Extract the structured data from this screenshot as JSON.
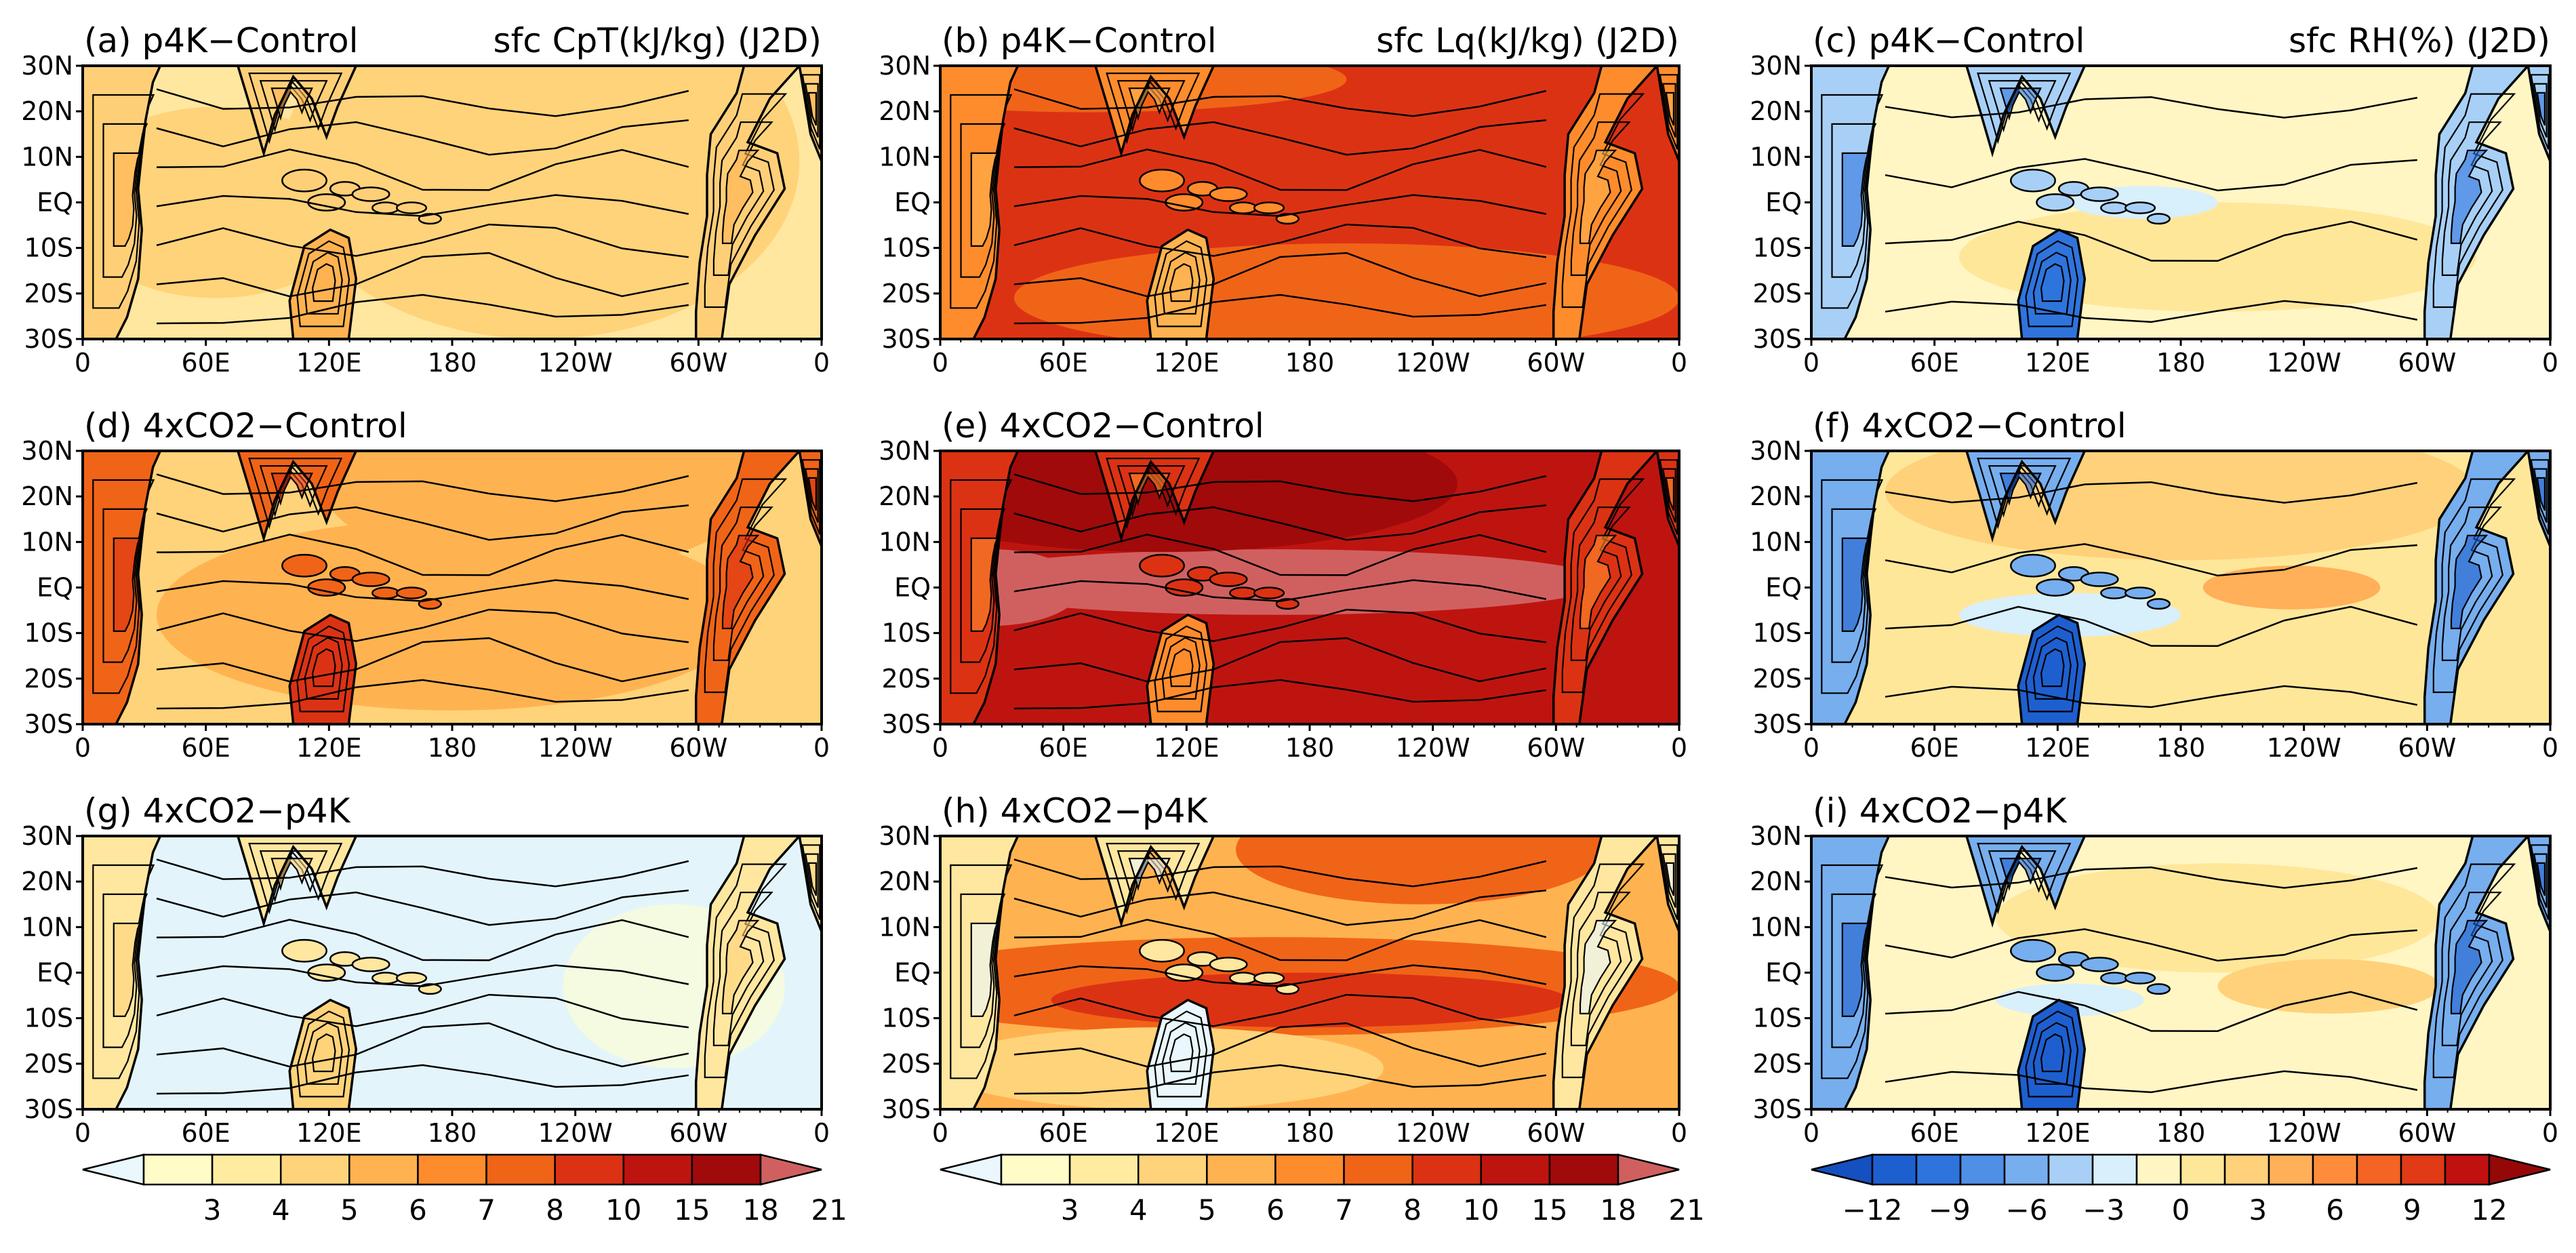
{
  "chart_data": {
    "type": "heatmap",
    "lat_ticks": [
      "30N",
      "20N",
      "10N",
      "EQ",
      "10S",
      "20S",
      "30S"
    ],
    "lon_ticks": [
      "0",
      "60E",
      "120E",
      "180",
      "120W",
      "60W",
      "0"
    ],
    "panels": [
      {
        "id": "a",
        "left": "(a) p4K−Control",
        "right": "sfc CpT(kJ/kg) (J2D)",
        "var": "cpt",
        "scen": "p4k"
      },
      {
        "id": "b",
        "left": "(b) p4K−Control",
        "right": "sfc Lq(kJ/kg) (J2D)",
        "var": "lq",
        "scen": "p4k"
      },
      {
        "id": "c",
        "left": "(c) p4K−Control",
        "right": "sfc RH(%) (J2D)",
        "var": "rh",
        "scen": "p4k"
      },
      {
        "id": "d",
        "left": "(d) 4xCO2−Control",
        "right": "",
        "var": "cpt",
        "scen": "4x"
      },
      {
        "id": "e",
        "left": "(e) 4xCO2−Control",
        "right": "",
        "var": "lq",
        "scen": "4x"
      },
      {
        "id": "f",
        "left": "(f) 4xCO2−Control",
        "right": "",
        "var": "rh",
        "scen": "4x"
      },
      {
        "id": "g",
        "left": "(g) 4xCO2−p4K",
        "right": "",
        "var": "cpt",
        "scen": "diff"
      },
      {
        "id": "h",
        "left": "(h) 4xCO2−p4K",
        "right": "",
        "var": "lq",
        "scen": "diff"
      },
      {
        "id": "i",
        "left": "(i) 4xCO2−p4K",
        "right": "",
        "var": "rh",
        "scen": "diff"
      }
    ],
    "colorbars": [
      {
        "labels": [
          "3",
          "4",
          "5",
          "6",
          "7",
          "8",
          "10",
          "15",
          "18",
          "21"
        ],
        "colors": [
          "#fffcc8",
          "#ffeca0",
          "#ffd37a",
          "#ffb350",
          "#ff8c2c",
          "#f06418",
          "#dc3214",
          "#be1410",
          "#a00a0a",
          "#d06060"
        ],
        "under": "#eaf8fd"
      },
      {
        "labels": [
          "3",
          "4",
          "5",
          "6",
          "7",
          "8",
          "10",
          "15",
          "18",
          "21"
        ],
        "colors": [
          "#fffcc8",
          "#ffeca0",
          "#ffd37a",
          "#ffb350",
          "#ff8c2c",
          "#f06418",
          "#dc3214",
          "#be1410",
          "#a00a0a",
          "#d06060"
        ],
        "under": "#eaf8fd"
      },
      {
        "labels": [
          "−12",
          "−9",
          "−6",
          "−3",
          "0",
          "3",
          "6",
          "9",
          "12"
        ],
        "colors": [
          "#1e5fcf",
          "#2f74dd",
          "#4f8fe6",
          "#77aeee",
          "#a8d0f6",
          "#d8effc",
          "#fff6c4",
          "#ffe79a",
          "#ffd17a",
          "#ffb058",
          "#ff8c3a",
          "#f46424",
          "#e03a16",
          "#c01010",
          "#960808"
        ],
        "under": "#1450c0"
      }
    ]
  }
}
